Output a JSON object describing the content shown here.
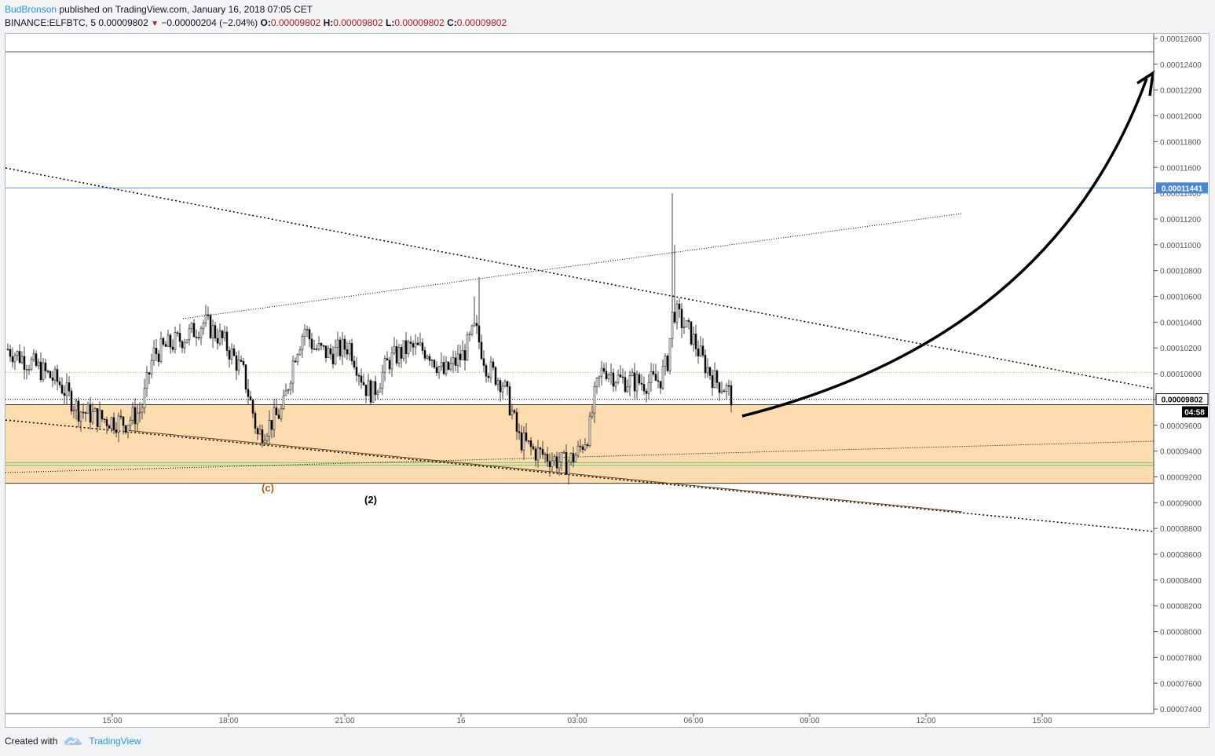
{
  "header": {
    "author": "BudBronson",
    "published": "published on TradingView.com, January 16, 2018 07:05 CET",
    "symbol": "BINANCE:ELFBTC, 5",
    "last": "0.00009802",
    "change": "−0.00000204 (−2.04%)",
    "o_label": "O:",
    "o_val": "0.00009802",
    "h_label": "H:",
    "h_val": "0.00009802",
    "l_label": "L:",
    "l_val": "0.00009802",
    "c_label": "C:",
    "c_val": "0.00009802"
  },
  "footer": {
    "created_with": "Created with",
    "brand": "TradingView",
    "logo_icon": "tradingview-cloud-icon"
  },
  "colors": {
    "up": "#ffffff",
    "down": "#000000",
    "zone": "#fcdcae",
    "blue_line": "#5b8bd6",
    "green_line": "#66cc66",
    "orange_dotted": "#f0a030"
  },
  "chart_data": {
    "type": "candlestick",
    "interval": "5",
    "y_ticks": [
      "0.00012600",
      "0.00012400",
      "0.00012200",
      "0.00012000",
      "0.00011800",
      "0.00011600",
      "0.00011400",
      "0.00011200",
      "0.00011000",
      "0.00010800",
      "0.00010600",
      "0.00010400",
      "0.00010200",
      "0.00010000",
      "0.00009800",
      "0.00009600",
      "0.00009400",
      "0.00009200",
      "0.00009000",
      "0.00008800",
      "0.00008600",
      "0.00008400",
      "0.00008200",
      "0.00008000",
      "0.00007800",
      "0.00007600",
      "0.00007400"
    ],
    "x_ticks": [
      "15:00",
      "18:00",
      "21:00",
      "16",
      "03:00",
      "06:00",
      "09:00",
      "12:00",
      "15:00"
    ],
    "price_labels": {
      "last": "0.00009802",
      "countdown": "04:58",
      "resistance": "0.00011441"
    },
    "zone": {
      "from": 9.15e-05,
      "to": 9.76e-05
    },
    "levels": {
      "resistance": 0.00011441,
      "support_a": 9.31e-05,
      "support_b": 9.29e-05,
      "dotted_orange": 0.0001001,
      "last": 9.802e-05
    },
    "annotations": [
      {
        "text": "(c)"
      },
      {
        "text": "(2)"
      }
    ]
  }
}
